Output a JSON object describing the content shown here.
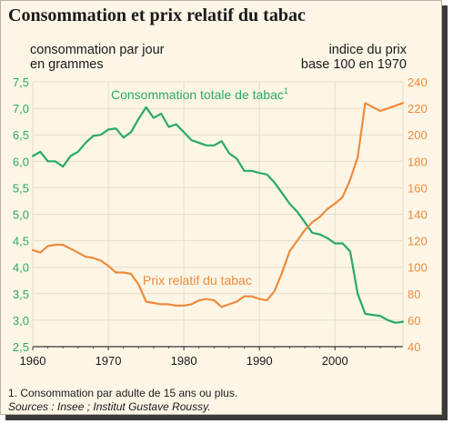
{
  "title": "Consommation et prix relatif du tabac",
  "footnote": "1. Consommation par adulte de 15 ans ou plus.",
  "sources": "Sources : Insee ; Institut Gustave Roussy.",
  "chart_data": {
    "type": "line",
    "left_axis_label_lines": [
      "consommation par jour",
      "en grammes"
    ],
    "right_axis_label_lines": [
      "indice du prix",
      "base 100 en 1970"
    ],
    "x_ticks": [
      1960,
      1970,
      1980,
      1990,
      2000
    ],
    "xlim": [
      1960,
      2009
    ],
    "y_left_ticks": [
      "2,5",
      "3,0",
      "3,5",
      "4,0",
      "4,5",
      "5,0",
      "5,5",
      "6,0",
      "6,5",
      "7,0",
      "7,5"
    ],
    "y_left_lim": [
      2.5,
      7.5
    ],
    "y_right_ticks": [
      "40",
      "60",
      "80",
      "100",
      "120",
      "140",
      "160",
      "180",
      "200",
      "220",
      "240"
    ],
    "y_right_lim": [
      40,
      240
    ],
    "grid": true,
    "colors": {
      "consumption": "#2aa86a",
      "price": "#ef8a3c",
      "grid": "#e4dccb",
      "axis": "#333333"
    },
    "series": [
      {
        "name": "Consommation totale de tabac",
        "superscript": "1",
        "axis": "left",
        "x": [
          1960,
          1961,
          1962,
          1963,
          1964,
          1965,
          1966,
          1967,
          1968,
          1969,
          1970,
          1971,
          1972,
          1973,
          1974,
          1975,
          1976,
          1977,
          1978,
          1979,
          1980,
          1981,
          1982,
          1983,
          1984,
          1985,
          1986,
          1987,
          1988,
          1989,
          1990,
          1991,
          1992,
          1993,
          1994,
          1995,
          1996,
          1997,
          1998,
          1999,
          2000,
          2001,
          2002,
          2003,
          2004,
          2005,
          2006,
          2007,
          2008,
          2009
        ],
        "values": [
          6.1,
          6.18,
          6.0,
          6.0,
          5.9,
          6.1,
          6.18,
          6.35,
          6.48,
          6.5,
          6.6,
          6.62,
          6.45,
          6.55,
          6.8,
          7.02,
          6.82,
          6.9,
          6.65,
          6.7,
          6.55,
          6.4,
          6.35,
          6.3,
          6.3,
          6.38,
          6.15,
          6.05,
          5.82,
          5.82,
          5.78,
          5.75,
          5.6,
          5.4,
          5.2,
          5.05,
          4.85,
          4.65,
          4.62,
          4.55,
          4.45,
          4.45,
          4.3,
          3.5,
          3.12,
          3.1,
          3.08,
          3.0,
          2.95,
          2.97
        ]
      },
      {
        "name": "Prix relatif du tabac",
        "axis": "right",
        "x": [
          1960,
          1961,
          1962,
          1963,
          1964,
          1965,
          1966,
          1967,
          1968,
          1969,
          1970,
          1971,
          1972,
          1973,
          1974,
          1975,
          1976,
          1977,
          1978,
          1979,
          1980,
          1981,
          1982,
          1983,
          1984,
          1985,
          1986,
          1987,
          1988,
          1989,
          1990,
          1991,
          1992,
          1993,
          1994,
          1995,
          1996,
          1997,
          1998,
          1999,
          2000,
          2001,
          2002,
          2003,
          2004,
          2005,
          2006,
          2007,
          2008,
          2009
        ],
        "values": [
          113,
          111,
          116,
          117,
          117,
          114,
          111,
          108,
          107,
          105,
          101,
          96,
          96,
          95,
          87,
          74,
          73,
          72,
          72,
          71,
          71,
          72,
          75,
          76,
          75,
          70,
          72,
          74,
          78,
          78,
          76,
          75,
          82,
          96,
          112,
          120,
          128,
          134,
          138,
          144,
          148,
          153,
          166,
          183,
          224,
          221,
          218,
          220,
          222,
          224
        ]
      }
    ],
    "annotations": [
      {
        "text": "Consommation totale de tabac",
        "superscript": "1",
        "series": 0
      },
      {
        "text": "Prix relatif du tabac",
        "series": 1
      }
    ]
  }
}
